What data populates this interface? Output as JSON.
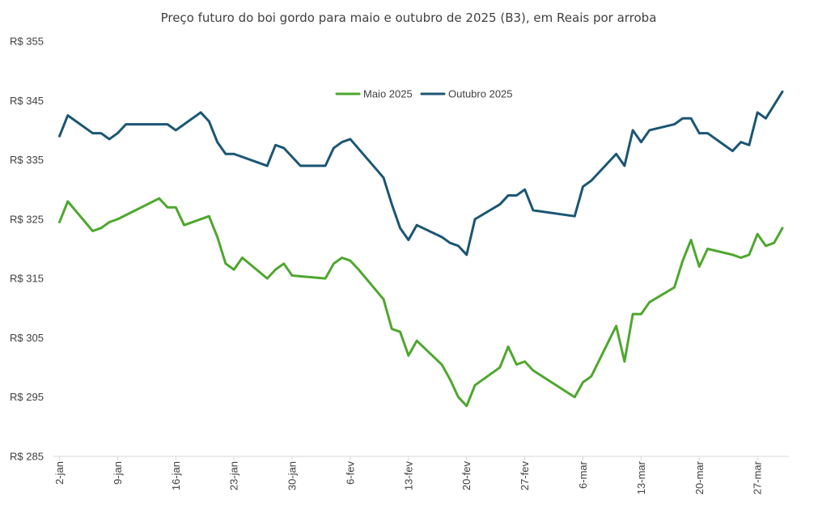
{
  "chart_data": {
    "type": "line",
    "title": "Preço futuro do boi gordo para maio e outubro de 2025 (B3), em Reais por arroba",
    "xlabel": "",
    "ylabel": "",
    "ylim": [
      285,
      355
    ],
    "yticks": [
      285,
      295,
      305,
      315,
      325,
      335,
      345,
      355
    ],
    "ytick_labels": [
      "R$ 285",
      "R$ 295",
      "R$ 305",
      "R$ 315",
      "R$ 325",
      "R$ 335",
      "R$ 345",
      "R$ 355"
    ],
    "x_range_days": [
      0,
      87
    ],
    "x_ticks": [
      {
        "label": "2-jan",
        "day": 0
      },
      {
        "label": "9-jan",
        "day": 7
      },
      {
        "label": "16-jan",
        "day": 14
      },
      {
        "label": "23-jan",
        "day": 21
      },
      {
        "label": "30-jan",
        "day": 28
      },
      {
        "label": "6-fev",
        "day": 35
      },
      {
        "label": "13-fev",
        "day": 42
      },
      {
        "label": "20-fev",
        "day": 49
      },
      {
        "label": "27-fev",
        "day": 56
      },
      {
        "label": "6-mar",
        "day": 63
      },
      {
        "label": "13-mar",
        "day": 70
      },
      {
        "label": "20-mar",
        "day": 77
      },
      {
        "label": "27-mar",
        "day": 84
      }
    ],
    "legend_position": "top-center",
    "series": [
      {
        "name": "Maio 2025",
        "color": "#4ea72e",
        "days": [
          0,
          1,
          4,
          5,
          6,
          7,
          12,
          13,
          14,
          15,
          18,
          19,
          20,
          21,
          22,
          25,
          26,
          27,
          28,
          32,
          33,
          34,
          35,
          36,
          39,
          40,
          41,
          42,
          43,
          46,
          47,
          48,
          49,
          50,
          53,
          54,
          55,
          56,
          57,
          62,
          63,
          64,
          67,
          68,
          69,
          70,
          71,
          74,
          75,
          76,
          77,
          78,
          81,
          82,
          83,
          84,
          85,
          86,
          87
        ],
        "values": [
          324.5,
          328.0,
          323.0,
          323.5,
          324.5,
          325.0,
          328.5,
          327.0,
          327.0,
          324.0,
          325.5,
          322.0,
          317.5,
          316.5,
          318.5,
          315.0,
          316.5,
          317.5,
          315.5,
          315.0,
          317.5,
          318.5,
          318.0,
          316.5,
          311.5,
          306.5,
          306.0,
          302.0,
          304.5,
          300.5,
          298.0,
          295.0,
          293.5,
          297.0,
          300.0,
          303.5,
          300.5,
          301.0,
          299.5,
          295.0,
          297.5,
          298.5,
          307.0,
          301.0,
          309.0,
          309.0,
          311.0,
          313.5,
          318.0,
          321.5,
          317.0,
          320.0,
          319.0,
          318.5,
          319.0,
          322.5,
          320.5,
          321.0,
          323.5
        ]
      },
      {
        "name": "Outubro 2025",
        "color": "#1b5674",
        "days": [
          0,
          1,
          4,
          5,
          6,
          7,
          8,
          13,
          14,
          15,
          17,
          18,
          19,
          20,
          21,
          25,
          26,
          27,
          28,
          29,
          32,
          33,
          34,
          35,
          39,
          40,
          41,
          42,
          43,
          46,
          47,
          48,
          49,
          50,
          53,
          54,
          55,
          56,
          57,
          62,
          63,
          64,
          67,
          68,
          69,
          70,
          71,
          74,
          75,
          76,
          77,
          78,
          81,
          82,
          83,
          84,
          85,
          87
        ],
        "values": [
          339.0,
          342.5,
          339.5,
          339.5,
          338.5,
          339.5,
          341.0,
          341.0,
          340.0,
          341.0,
          343.0,
          341.5,
          338.0,
          336.0,
          336.0,
          334.0,
          337.5,
          337.0,
          335.5,
          334.0,
          334.0,
          337.0,
          338.0,
          338.5,
          332.0,
          327.5,
          323.5,
          321.5,
          324.0,
          322.0,
          321.0,
          320.5,
          319.0,
          325.0,
          327.5,
          329.0,
          329.0,
          330.0,
          326.5,
          325.5,
          330.5,
          331.5,
          336.0,
          334.0,
          340.0,
          338.0,
          340.0,
          341.0,
          342.0,
          342.0,
          339.5,
          339.5,
          336.5,
          338.0,
          337.5,
          343.0,
          342.0,
          346.5
        ]
      }
    ]
  }
}
